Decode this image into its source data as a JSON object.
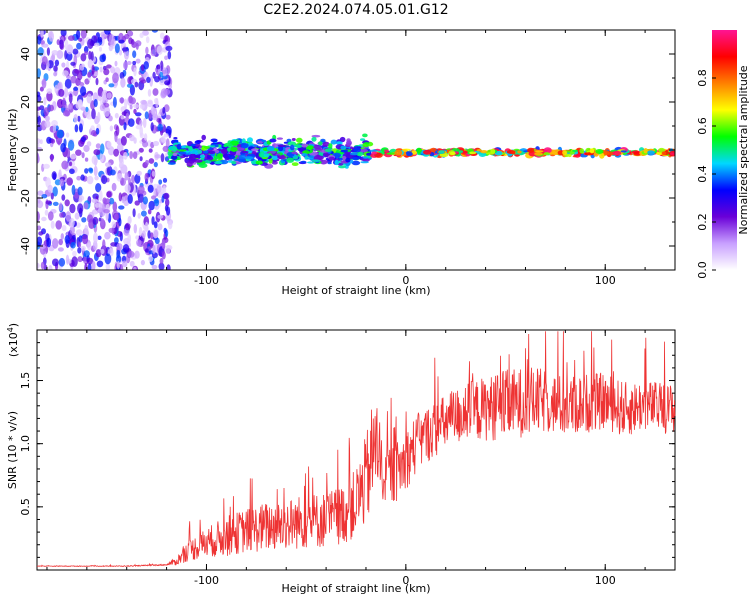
{
  "page": {
    "title": "C2E2.2024.074.05.01.G12"
  },
  "chart_data": [
    {
      "type": "heatmap",
      "xlabel": "Height of straight line (km)",
      "ylabel": "Frequency (Hz)",
      "xlim": [
        -185,
        135
      ],
      "ylim": [
        -50,
        50
      ],
      "xticks": [
        -100,
        0,
        100
      ],
      "yticks": [
        -40,
        -20,
        0,
        20,
        40
      ],
      "grid": false,
      "regions": [
        {
          "x": [
            -185,
            -118
          ],
          "freq_center": 0,
          "freq_spread": 50,
          "intensity": "low (0.1-0.4)",
          "pattern": "broadband noise"
        },
        {
          "x": [
            -118,
            -18
          ],
          "freq_center": -1,
          "freq_spread": 7,
          "intensity": "medium (0.2-0.6)",
          "pattern": "scattered signal"
        },
        {
          "x": [
            -18,
            135
          ],
          "freq_center": -1,
          "freq_spread": 2,
          "intensity": "high (0.8-1.0)",
          "pattern": "steady narrowband line"
        }
      ],
      "colorbar": {
        "label": "Normalized spectral amplitude",
        "range": [
          0.0,
          1.0
        ],
        "ticks": [
          0.0,
          0.2,
          0.4,
          0.6,
          0.8
        ],
        "colors": [
          "#ffffff",
          "#c8a0ff",
          "#6a00d8",
          "#0000ff",
          "#00d8ff",
          "#00ff00",
          "#ffff00",
          "#ff8000",
          "#ff0000",
          "#ff1493"
        ]
      }
    },
    {
      "type": "line",
      "xlabel": "Height of straight line (km)",
      "ylabel": "SNR (10 * v/v)",
      "y_multiplier": "(x10",
      "y_multiplier_exp": "4",
      "y_multiplier_close": ")",
      "xlim": [
        -185,
        135
      ],
      "ylim": [
        0,
        1.9
      ],
      "xticks": [
        -100,
        0,
        100
      ],
      "yticks": [
        0.5,
        1.0,
        1.5
      ],
      "series": [
        {
          "color": "#ee3333",
          "x": [
            -185,
            -160,
            -140,
            -120,
            -115,
            -110,
            -100,
            -90,
            -80,
            -70,
            -60,
            -50,
            -40,
            -30,
            -25,
            -20,
            -17,
            -15,
            -12,
            -10,
            -5,
            0,
            5,
            10,
            20,
            30,
            40,
            50,
            60,
            70,
            80,
            90,
            100,
            110,
            120,
            130,
            135
          ],
          "values": [
            0.03,
            0.03,
            0.03,
            0.04,
            0.06,
            0.12,
            0.18,
            0.22,
            0.26,
            0.28,
            0.3,
            0.32,
            0.33,
            0.38,
            0.45,
            0.6,
            0.75,
            0.9,
            0.72,
            0.68,
            0.7,
            0.8,
            0.92,
            1.0,
            1.1,
            1.18,
            1.2,
            1.22,
            1.25,
            1.26,
            1.22,
            1.25,
            1.27,
            1.2,
            1.25,
            1.22,
            1.22
          ],
          "spread": [
            0.003,
            0.003,
            0.004,
            0.006,
            0.04,
            0.1,
            0.15,
            0.2,
            0.22,
            0.25,
            0.25,
            0.28,
            0.28,
            0.3,
            0.35,
            0.45,
            0.55,
            0.5,
            0.3,
            0.3,
            0.3,
            0.3,
            0.3,
            0.28,
            0.28,
            0.3,
            0.32,
            0.35,
            0.35,
            0.32,
            0.3,
            0.3,
            0.28,
            0.28,
            0.25,
            0.25,
            0.25
          ]
        }
      ]
    }
  ]
}
